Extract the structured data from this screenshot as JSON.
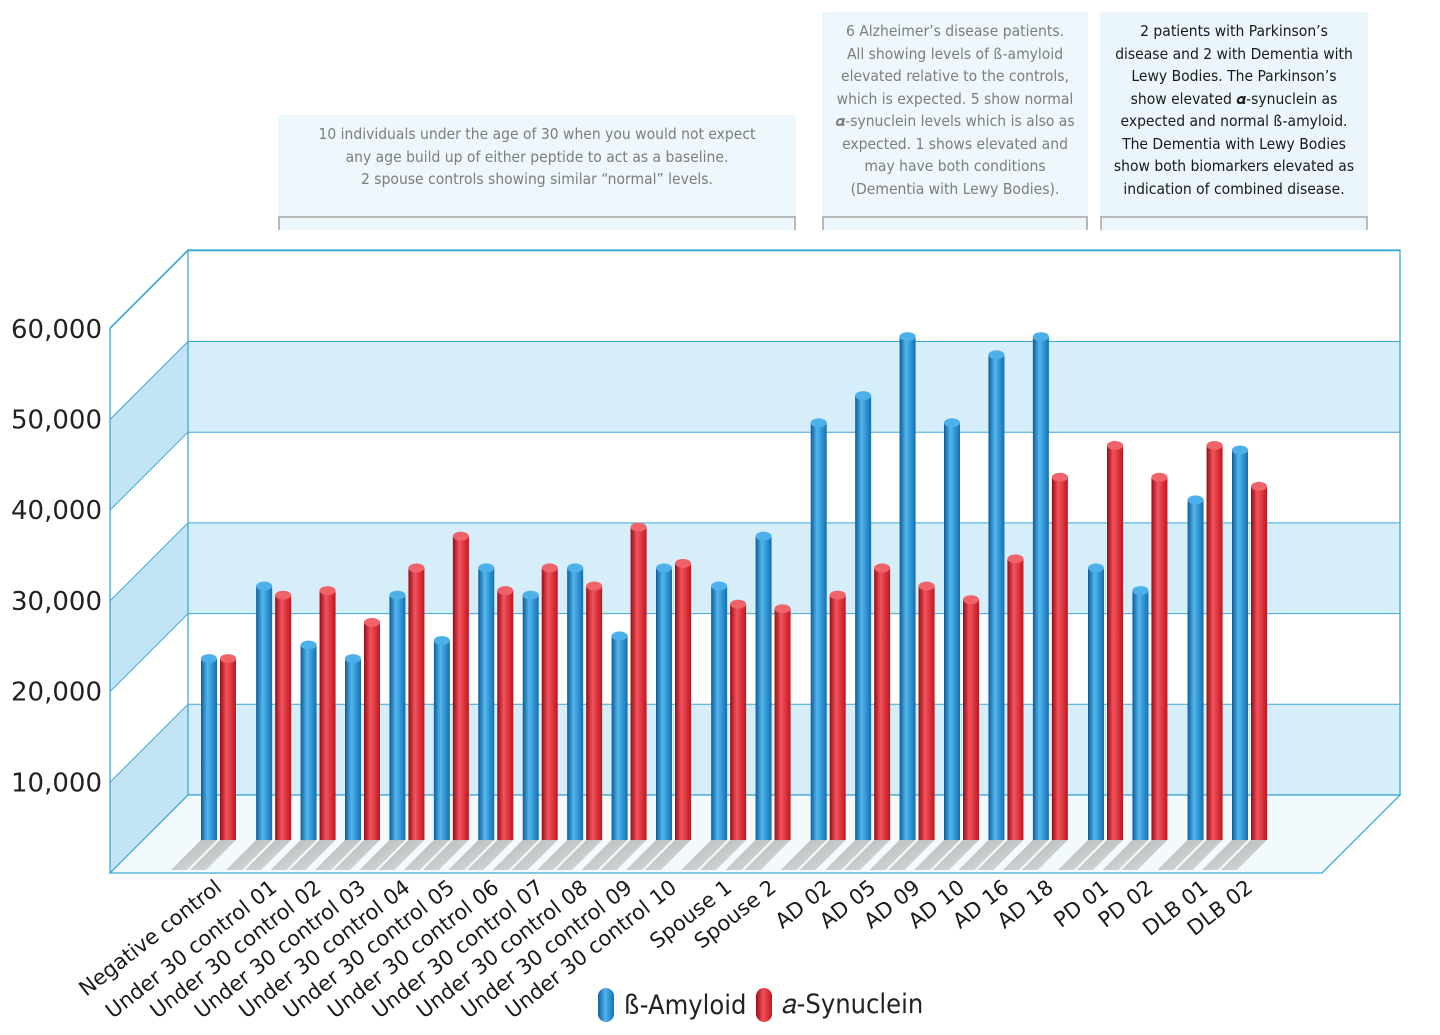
{
  "notes": [
    {
      "lines": [
        "10 individuals under the age of 30 when you would not expect",
        "any age build up of either peptide to act as a baseline.",
        "2 spouse controls showing similar “normal” levels."
      ]
    },
    {
      "lines": [
        "6 Alzheimer’s disease patients.",
        "All showing levels of ß-amyloid",
        "elevated relative to the controls,",
        "which is expected. 5 show normal",
        "𝜶-synuclein levels which is also as",
        "expected. 1 shows elevated and",
        "may have both conditions",
        "(Dementia with Lewy Bodies)."
      ]
    },
    {
      "lines": [
        "2 patients with Parkinson’s",
        "disease and 2 with Dementia with",
        "Lewy Bodies. The Parkinson’s",
        "show elevated 𝜶-synuclein as",
        "expected and normal ß-amyloid.",
        "The Dementia with Lewy Bodies",
        "show both biomarkers elevated as",
        "indication of combined disease."
      ]
    }
  ],
  "legend": {
    "beta_label": "ß-Amyloid",
    "alpha_label": "𝑎-Synuclein"
  },
  "colors": {
    "beta": "#1a8ad4",
    "alpha": "#e32530",
    "frame": "#3da8d8",
    "band": "#d6eef9",
    "wall": "#c2e4f4"
  },
  "chart_data": {
    "type": "bar",
    "title": "",
    "xlabel": "",
    "ylabel": "",
    "ylim": [
      0,
      60000
    ],
    "yticks": [
      10000,
      20000,
      30000,
      40000,
      50000,
      60000
    ],
    "ytick_labels": [
      "10,000",
      "20,000",
      "30,000",
      "40,000",
      "50,000",
      "60,000"
    ],
    "categories": [
      "Negative control",
      "Under 30 control 01",
      "Under 30 control 02",
      "Under 30 control 03",
      "Under 30 control 04",
      "Under 30 control 05",
      "Under 30 control 06",
      "Under 30 control 07",
      "Under 30 control 08",
      "Under 30 control 09",
      "Under 30 control 10",
      "Spouse 1",
      "Spouse 2",
      "AD 02",
      "AD 05",
      "AD 09",
      "AD 10",
      "AD 16",
      "AD 18",
      "PD 01",
      "PD 02",
      "DLB 01",
      "DLB 02"
    ],
    "series": [
      {
        "name": "ß-Amyloid",
        "values": [
          20000,
          28000,
          21500,
          20000,
          27000,
          22000,
          30000,
          27000,
          30000,
          22500,
          30000,
          28000,
          33500,
          46000,
          49000,
          55500,
          46000,
          53500,
          55500,
          30000,
          27500,
          37500,
          43000
        ]
      },
      {
        "name": "𝑎-Synuclein",
        "values": [
          20000,
          27000,
          27500,
          24000,
          30000,
          33500,
          27500,
          30000,
          28000,
          34500,
          30500,
          26000,
          25500,
          27000,
          30000,
          28000,
          26500,
          31000,
          40000,
          43500,
          40000,
          43500,
          39000
        ]
      }
    ],
    "group_gaps_after": [
      0,
      10,
      12,
      18,
      20
    ],
    "legend_position": "bottom-center",
    "grid": true
  }
}
